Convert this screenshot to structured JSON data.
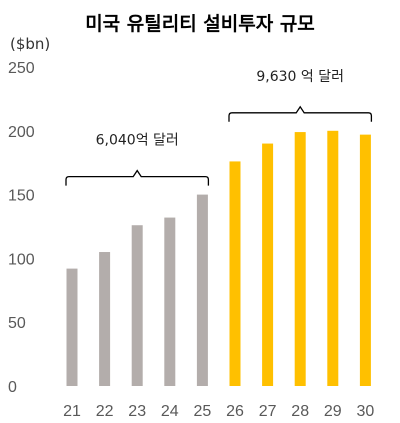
{
  "chart_data": {
    "type": "bar",
    "title": "미국 유틸리티 설비투자 규모",
    "unit_label": "($bn)",
    "categories": [
      "21",
      "22",
      "23",
      "24",
      "25",
      "26",
      "27",
      "28",
      "29",
      "30"
    ],
    "values": [
      92,
      105,
      126,
      132,
      150,
      176,
      190,
      199,
      200,
      197
    ],
    "ylim": [
      0,
      250
    ],
    "yticks": [
      "0",
      "50",
      "100",
      "150",
      "200",
      "250"
    ],
    "grid": false,
    "colors": {
      "historical": "#b3adab",
      "forecast": "#ffc000"
    },
    "bar_colors": [
      "historical",
      "historical",
      "historical",
      "historical",
      "historical",
      "forecast",
      "forecast",
      "forecast",
      "forecast",
      "forecast"
    ],
    "annotations": [
      {
        "text": "6,040억 달러",
        "from": "21",
        "to": "25"
      },
      {
        "text": "9,630 억 달러",
        "from": "26",
        "to": "30"
      }
    ]
  }
}
